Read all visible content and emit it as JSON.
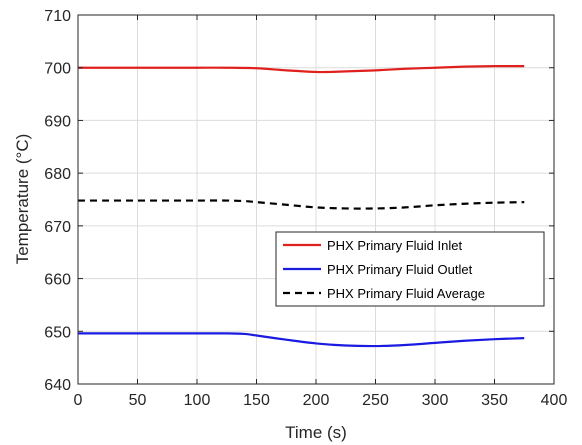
{
  "chart_data": {
    "type": "line",
    "title": "",
    "xlabel": "Time (s)",
    "ylabel": "Temperature (°C)",
    "xlim": [
      0,
      400
    ],
    "ylim": [
      640,
      710
    ],
    "xticks": [
      0,
      50,
      100,
      150,
      200,
      250,
      300,
      350,
      400
    ],
    "yticks": [
      640,
      650,
      660,
      670,
      680,
      690,
      700,
      710
    ],
    "grid": true,
    "legend_position": "center-right",
    "series": [
      {
        "name": "PHX Primary Fluid Inlet",
        "color": "#e0201c",
        "dash": "solid",
        "x": [
          0,
          25,
          50,
          75,
          100,
          125,
          150,
          175,
          200,
          212,
          225,
          250,
          275,
          300,
          325,
          350,
          375
        ],
        "y": [
          700.0,
          700.0,
          700.0,
          700.0,
          700.0,
          700.0,
          699.9,
          699.5,
          699.2,
          699.2,
          699.3,
          699.5,
          699.8,
          700.0,
          700.2,
          700.3,
          700.3
        ]
      },
      {
        "name": "PHX Primary Fluid Outlet",
        "color": "#1a1ae0",
        "dash": "solid",
        "x": [
          0,
          25,
          50,
          75,
          100,
          125,
          140,
          150,
          175,
          200,
          225,
          250,
          275,
          300,
          325,
          350,
          375
        ],
        "y": [
          649.6,
          649.6,
          649.6,
          649.6,
          649.6,
          649.6,
          649.5,
          649.2,
          648.4,
          647.7,
          647.3,
          647.2,
          647.4,
          647.8,
          648.2,
          648.5,
          648.7
        ]
      },
      {
        "name": "PHX Primary Fluid Average",
        "color": "#000000",
        "dash": "dashed",
        "x": [
          0,
          25,
          50,
          75,
          100,
          125,
          140,
          150,
          175,
          200,
          225,
          250,
          275,
          300,
          325,
          350,
          375
        ],
        "y": [
          674.8,
          674.8,
          674.8,
          674.8,
          674.8,
          674.8,
          674.7,
          674.5,
          674.0,
          673.5,
          673.3,
          673.3,
          673.5,
          673.9,
          674.2,
          674.4,
          674.5
        ]
      }
    ]
  }
}
